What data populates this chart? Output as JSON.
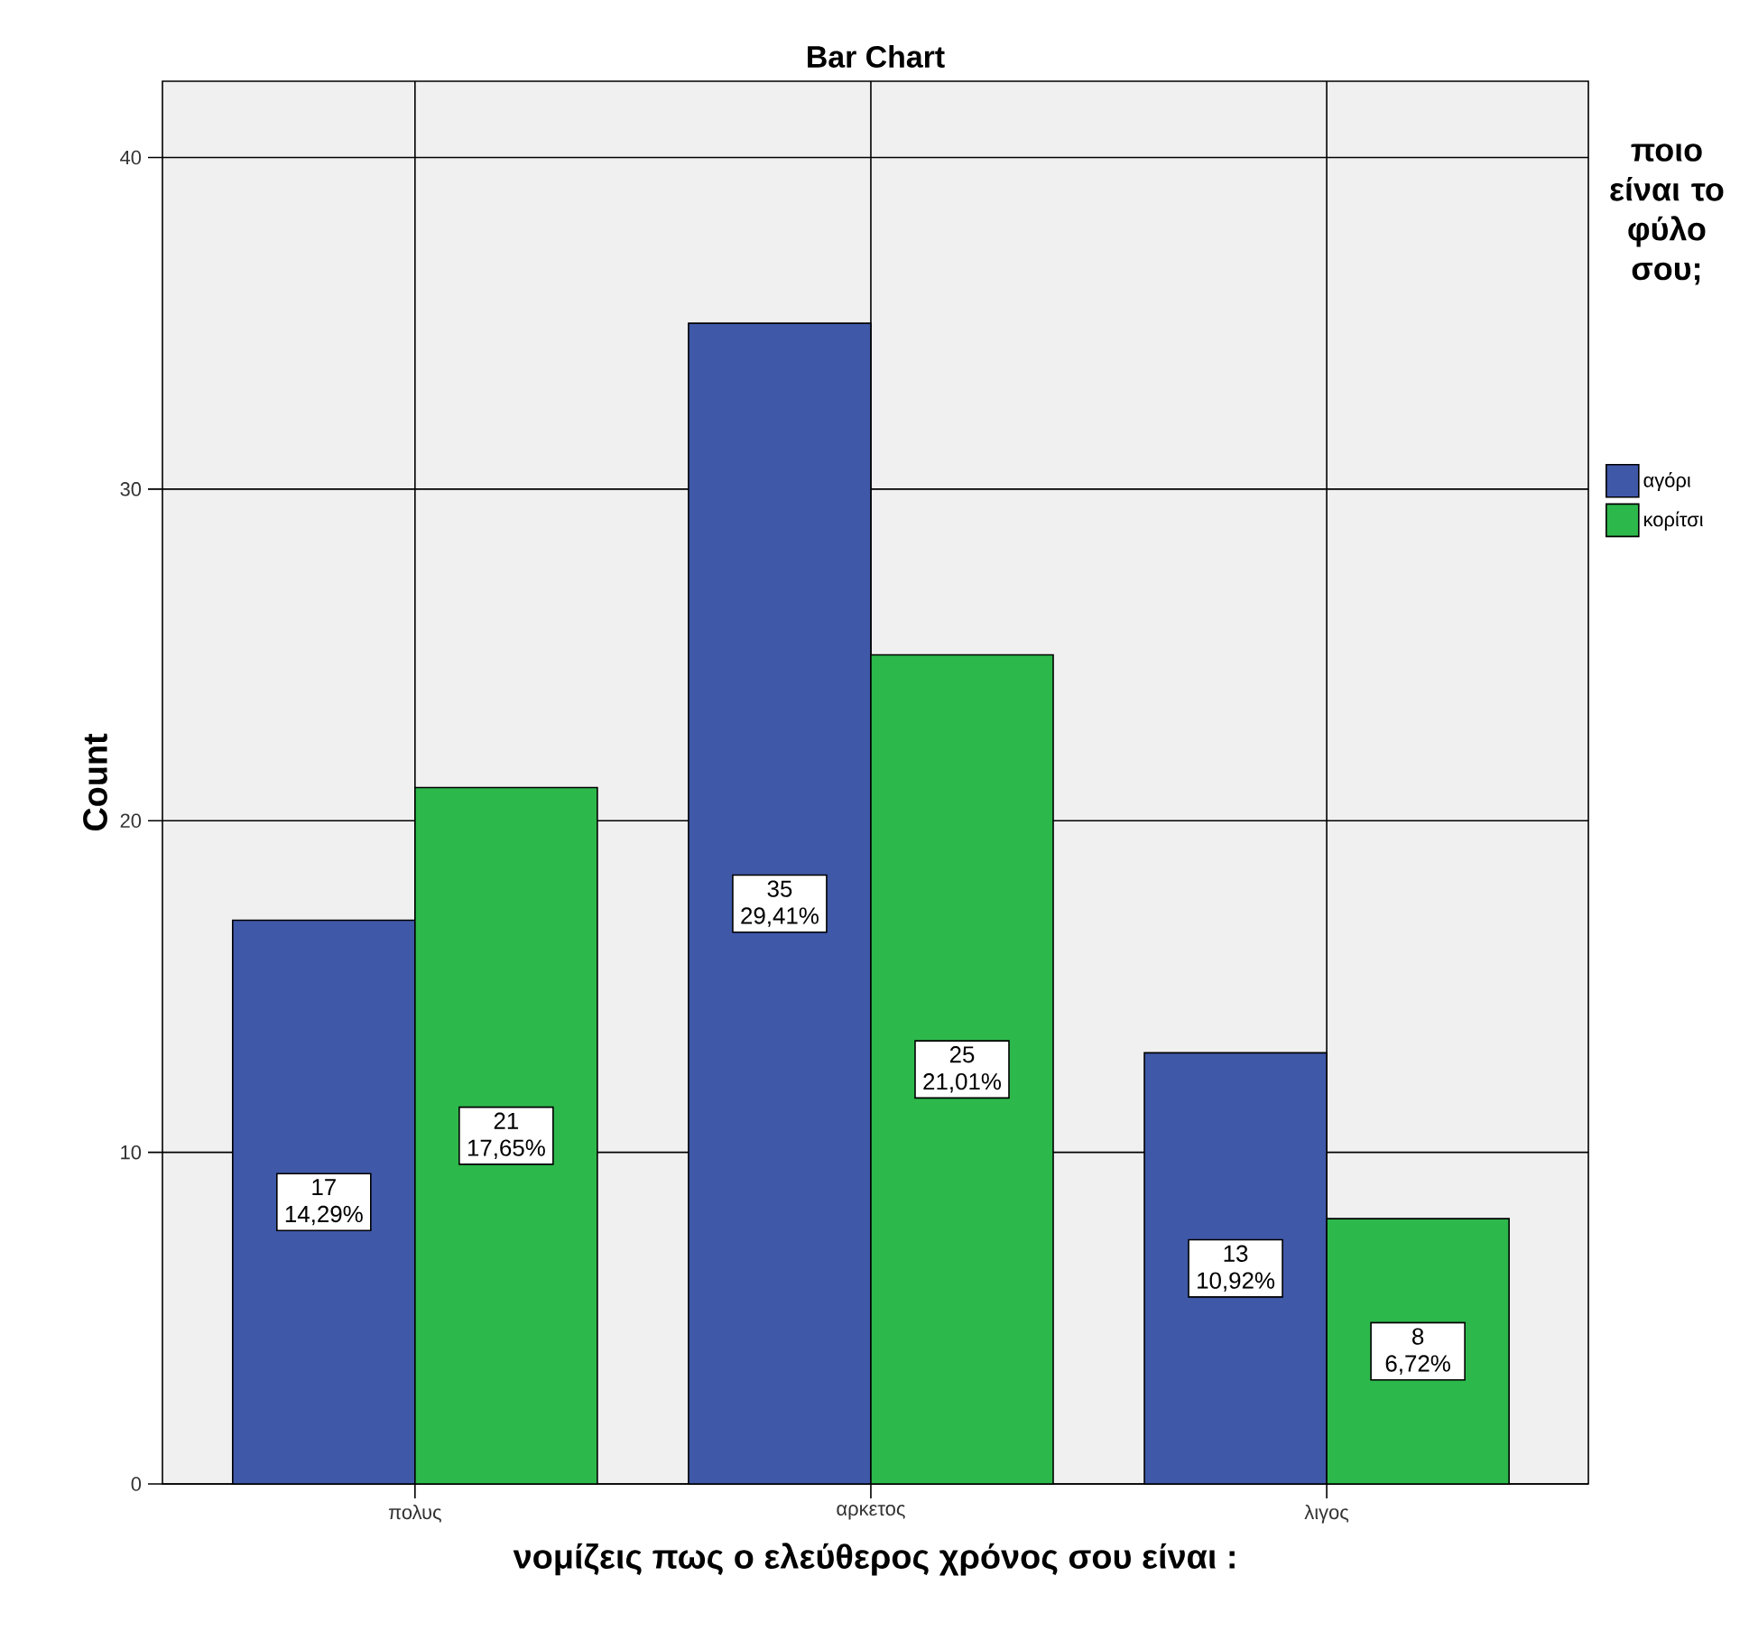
{
  "chart_data": {
    "type": "bar",
    "title": "Bar Chart",
    "xlabel": "νομίζεις πως ο ελεύθερος χρόνος σου είναι :",
    "ylabel": "Count",
    "legend_title": "ποιο είναι το φύλο σου;",
    "categories": [
      "πολυς",
      "αρκετος",
      "λιγος"
    ],
    "series": [
      {
        "name": "αγόρι",
        "color": "#3f58a8",
        "values": [
          17,
          35,
          13
        ],
        "value_labels": [
          "17 14,29%",
          "35 29,41%",
          "13 10,92%"
        ]
      },
      {
        "name": "κορίτσι",
        "color": "#2db84b",
        "values": [
          21,
          25,
          8
        ],
        "value_labels": [
          "21 17,65%",
          "25 21,01%",
          "8 6,72%"
        ]
      }
    ],
    "ylim": [
      0,
      42.3
    ],
    "yticks": [
      0,
      10,
      20,
      30,
      40
    ],
    "grid": true,
    "legend": "right"
  }
}
